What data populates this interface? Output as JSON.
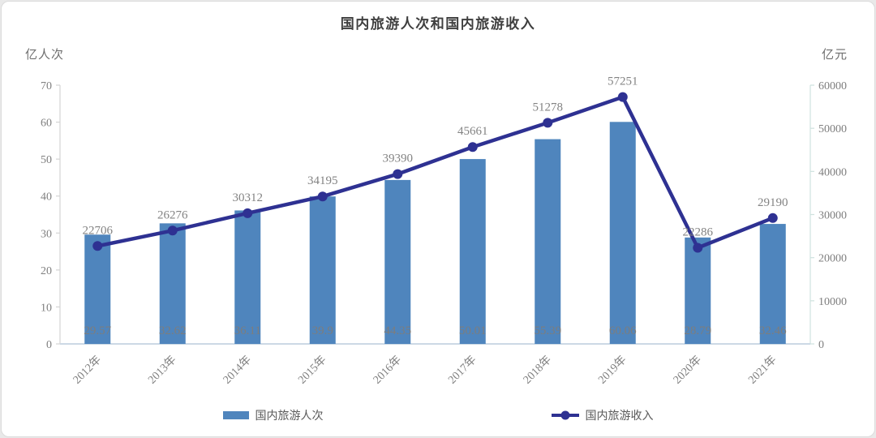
{
  "window": {
    "background": "#e9e9e9",
    "card_background": "#ffffff",
    "card_border": "#dcdcdc"
  },
  "chart_data": {
    "type": "bar+line",
    "title": "国内旅游人次和国内旅游收入",
    "categories": [
      "2012年",
      "2013年",
      "2014年",
      "2015年",
      "2016年",
      "2017年",
      "2018年",
      "2019年",
      "2020年",
      "2021年"
    ],
    "series": [
      {
        "name": "国内旅游人次",
        "type": "bar",
        "axis": "left",
        "unit": "亿人次",
        "color": "#4f85bd",
        "values": [
          29.57,
          32.62,
          36.11,
          39.9,
          44.35,
          50.01,
          55.39,
          60.06,
          28.79,
          32.46
        ],
        "labels": [
          "29.57",
          "32.62",
          "36.11",
          "39.9",
          "44.35",
          "50.01",
          "55.39",
          "60.06",
          "28.79",
          "32.46"
        ]
      },
      {
        "name": "国内旅游收入",
        "type": "line",
        "axis": "right",
        "unit": "亿元",
        "color": "#2e3192",
        "values": [
          22706,
          26276,
          30312,
          34195,
          39390,
          45661,
          51278,
          57251,
          22286,
          29190
        ],
        "labels": [
          "22706",
          "26276",
          "30312",
          "34195",
          "39390",
          "45661",
          "51278",
          "57251",
          "22286",
          "29190"
        ]
      }
    ],
    "left_axis": {
      "label": "亿人次",
      "min": 0,
      "max": 70,
      "step": 10,
      "ticks": [
        "0",
        "10",
        "20",
        "30",
        "40",
        "50",
        "60",
        "70"
      ]
    },
    "right_axis": {
      "label": "亿元",
      "min": 0,
      "max": 60000,
      "step": 10000,
      "ticks": [
        "0",
        "10000",
        "20000",
        "30000",
        "40000",
        "50000",
        "60000"
      ]
    },
    "legend": {
      "position": "bottom",
      "items": [
        {
          "label": "国内旅游人次",
          "marker": "bar-swatch"
        },
        {
          "label": "国内旅游收入",
          "marker": "line-dot"
        }
      ]
    },
    "grid": false,
    "styles": {
      "title_color": "#3f3f3f",
      "tick_color": "#7f7f7f",
      "data_label_color": "#838383",
      "left_axis_line_color": "#d4d4d4",
      "right_axis_line_color": "#cfe2df",
      "x_axis_line_color": "#ccd9e5"
    }
  }
}
